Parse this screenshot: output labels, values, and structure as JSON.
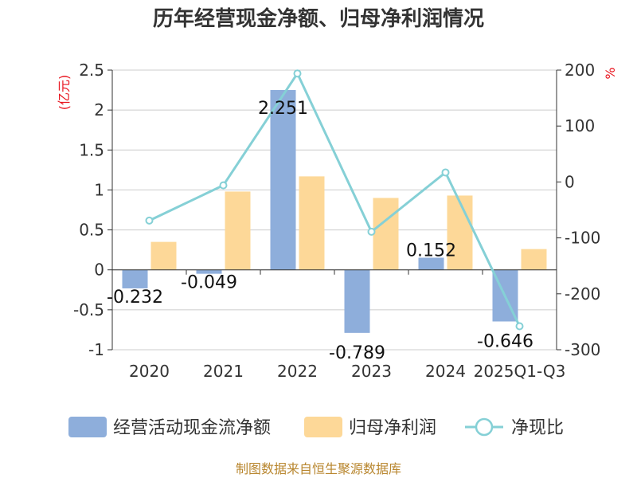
{
  "chart_data": {
    "type": "bar",
    "title": "历年经营现金净额、归母净利润情况",
    "categories": [
      "2020",
      "2021",
      "2022",
      "2023",
      "2024",
      "2025Q1-Q3"
    ],
    "series": [
      {
        "name": "经营活动现金流净额",
        "type": "bar",
        "axis": "left",
        "color": "#8eaedb",
        "values": [
          -0.232,
          -0.049,
          2.251,
          -0.789,
          0.152,
          -0.646
        ],
        "labels": [
          "-0.232",
          "-0.049",
          "2.251",
          "-0.789",
          "0.152",
          "-0.646"
        ]
      },
      {
        "name": "归母净利润",
        "type": "bar",
        "axis": "left",
        "color": "#fdd898",
        "values": [
          0.35,
          0.98,
          1.17,
          0.9,
          0.93,
          0.26
        ]
      },
      {
        "name": "净现比",
        "type": "line",
        "axis": "right",
        "color": "#85d0d6",
        "values": [
          -69,
          -6,
          194,
          -89,
          17,
          -258
        ]
      }
    ],
    "y_left": {
      "unit": "(亿元)",
      "ylim": [
        -1,
        2.5
      ],
      "ticks": [
        "-1",
        "-0.5",
        "0",
        "0.5",
        "1",
        "1.5",
        "2",
        "2.5"
      ]
    },
    "y_right": {
      "unit": "%",
      "ylim": [
        -300,
        200
      ],
      "ticks": [
        "-300",
        "-200",
        "-100",
        "0",
        "100",
        "200"
      ]
    },
    "grid": true,
    "legend": "bottom",
    "source": "制图数据来自恒生聚源数据库"
  }
}
